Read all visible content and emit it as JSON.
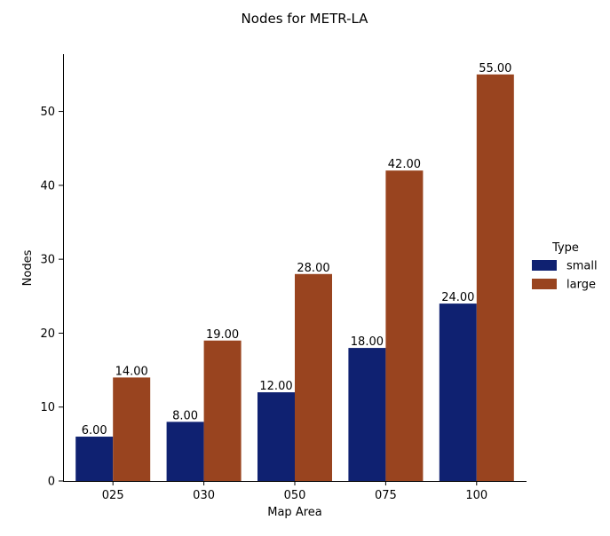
{
  "chart_data": {
    "type": "bar",
    "title": "Nodes for METR-LA",
    "xlabel": "Map Area",
    "ylabel": "Nodes",
    "categories": [
      "025",
      "030",
      "050",
      "075",
      "100"
    ],
    "series": [
      {
        "name": "small",
        "values": [
          6,
          8,
          12,
          18,
          24
        ],
        "color": "#0f2171"
      },
      {
        "name": "large",
        "values": [
          14,
          19,
          28,
          42,
          55
        ],
        "color": "#99441f"
      }
    ],
    "ylim": [
      0,
      57.75
    ],
    "yticks": [
      0,
      10,
      20,
      30,
      40,
      50
    ],
    "value_label_format": "2 decimals",
    "grid": false,
    "legend": {
      "title": "Type",
      "placement": "right, outside plot"
    }
  }
}
